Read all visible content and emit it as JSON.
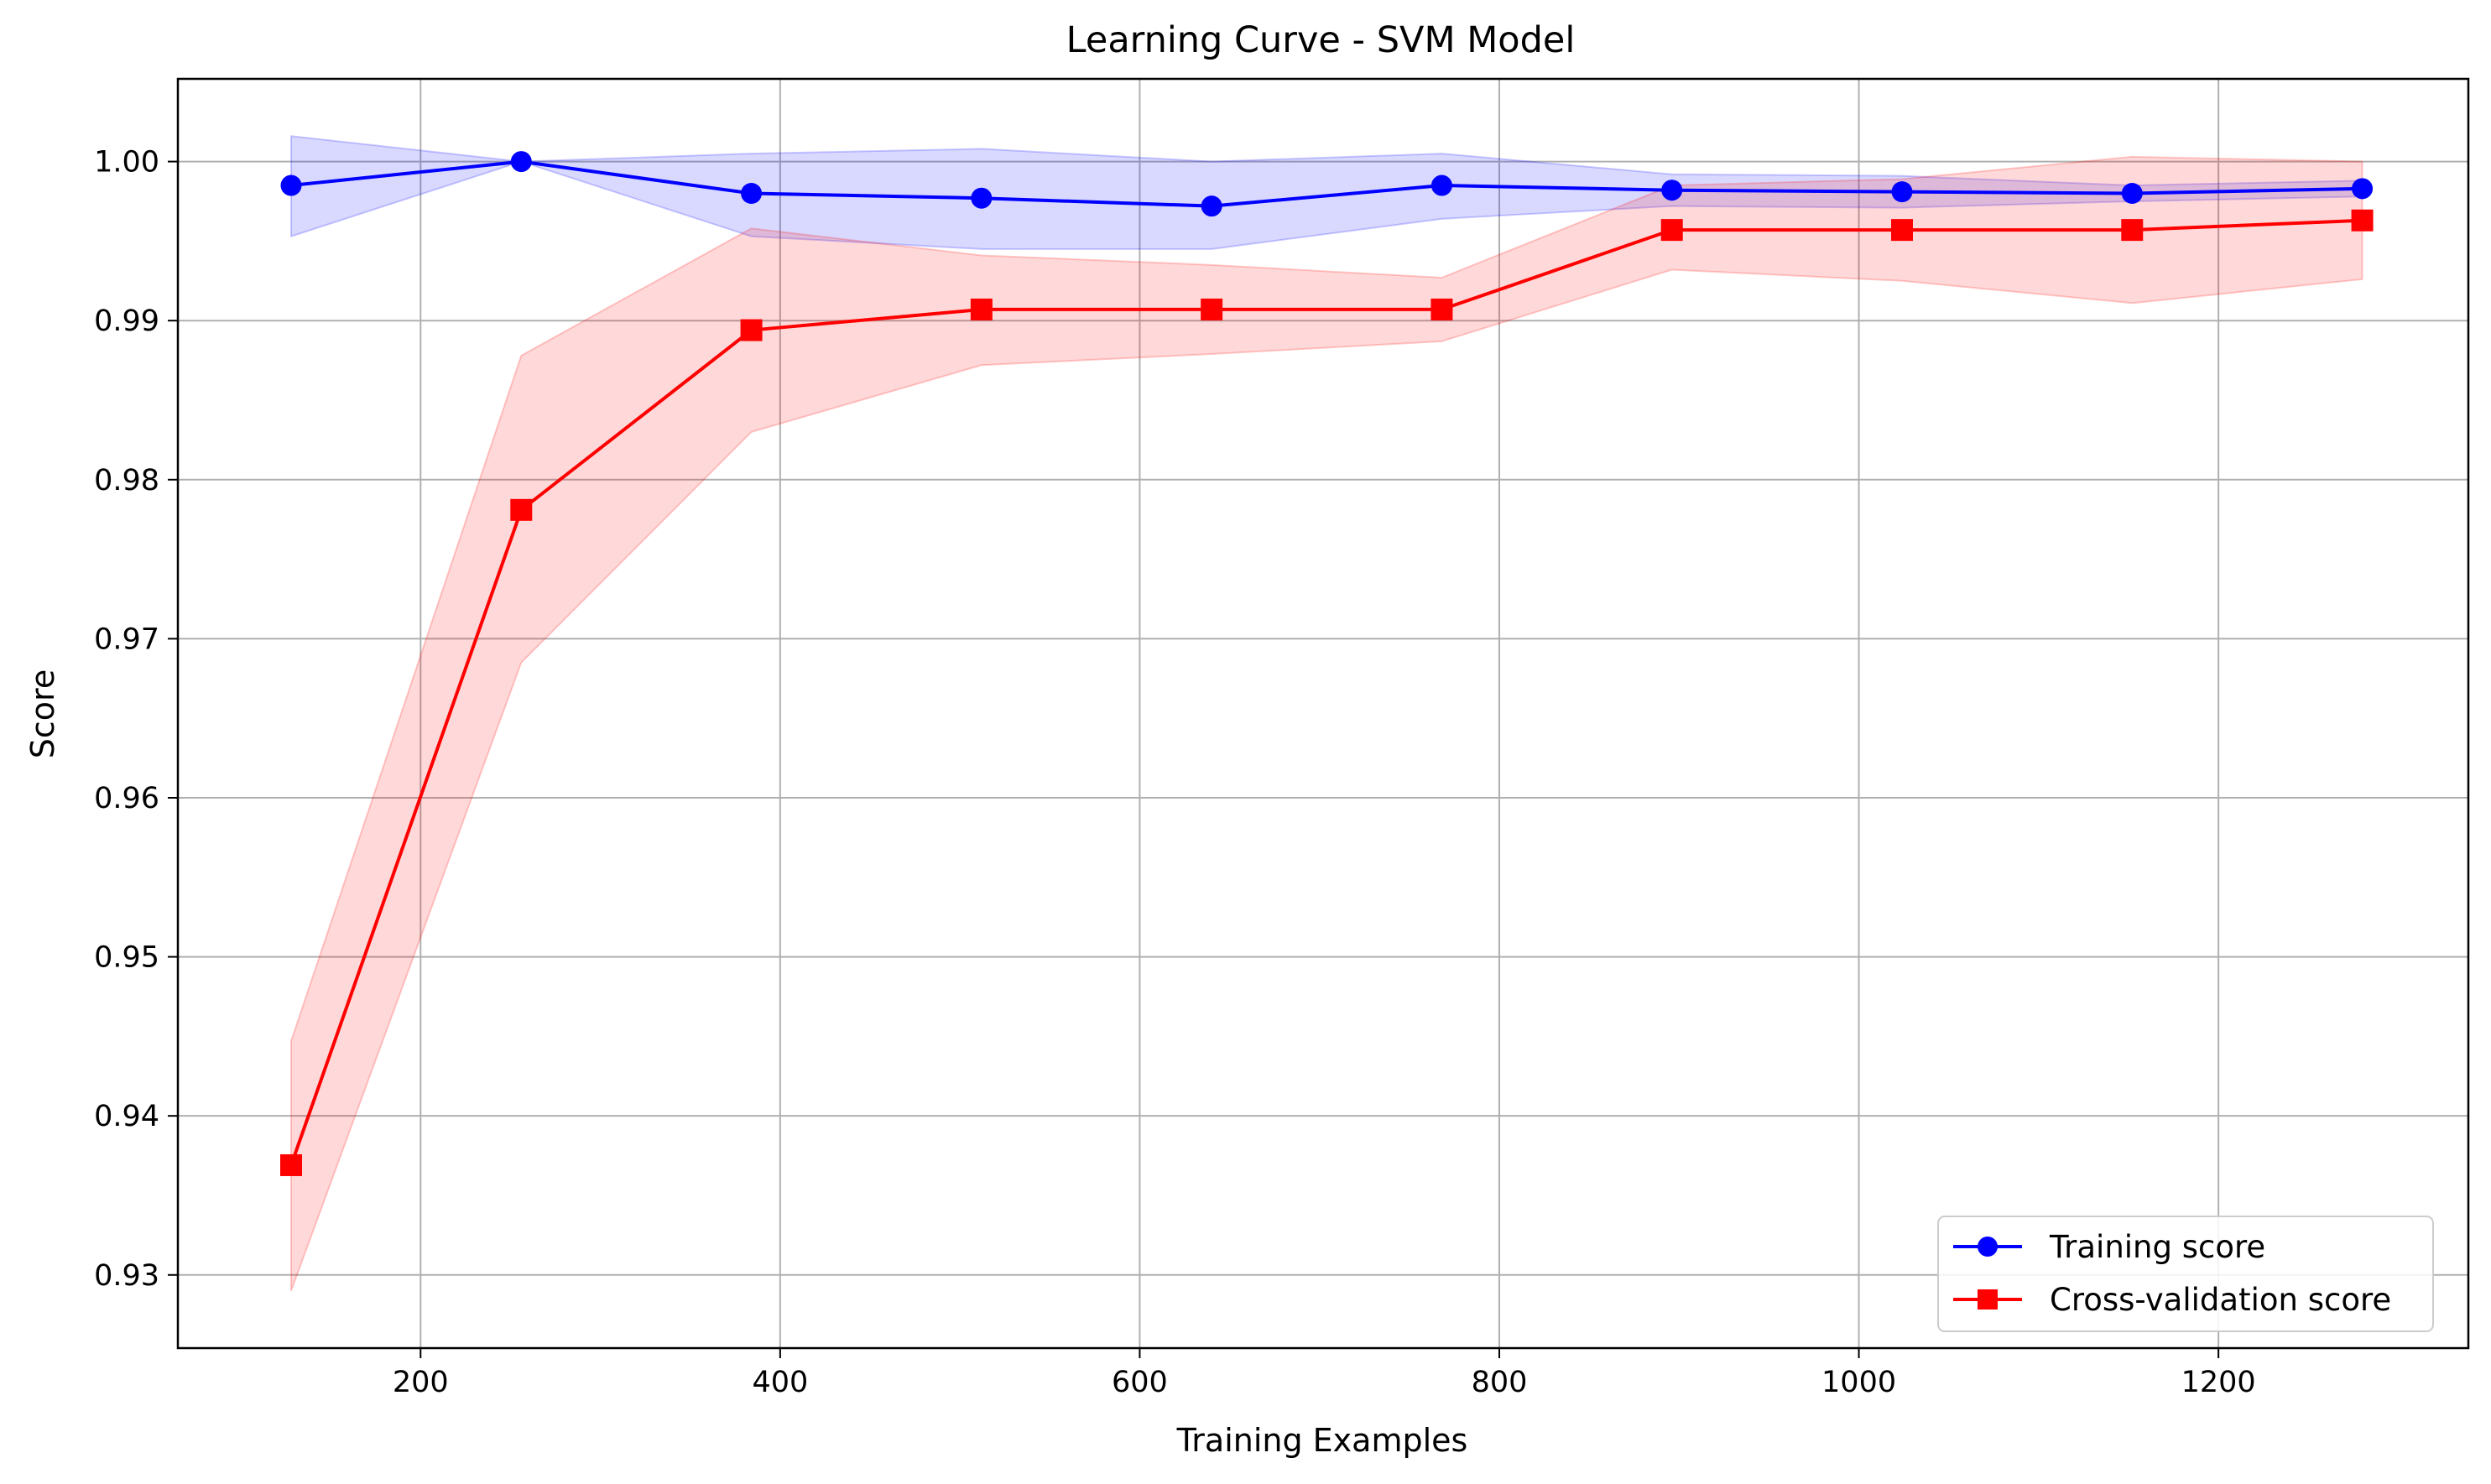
{
  "chart_data": {
    "type": "line",
    "title": "Learning Curve - SVM Model",
    "xlabel": "Training Examples",
    "ylabel": "Score",
    "xlim": [
      65,
      1339
    ],
    "ylim": [
      0.9254,
      1.0052
    ],
    "x_ticks": [
      200,
      400,
      600,
      800,
      1000,
      1200
    ],
    "x_tick_labels": [
      "200",
      "400",
      "600",
      "800",
      "1000",
      "1200"
    ],
    "y_ticks": [
      0.93,
      0.94,
      0.95,
      0.96,
      0.97,
      0.98,
      0.99,
      1.0
    ],
    "y_tick_labels": [
      "0.93",
      "0.94",
      "0.95",
      "0.96",
      "0.97",
      "0.98",
      "0.99",
      "1.00"
    ],
    "grid": true,
    "legend_position": "bottom-right",
    "x": [
      128,
      256,
      384,
      512,
      640,
      768,
      896,
      1024,
      1152,
      1280
    ],
    "series": [
      {
        "name": "Training score",
        "color": "#0000ff",
        "marker": "circle",
        "values": [
          0.9985,
          1.0,
          0.998,
          0.9977,
          0.9972,
          0.9985,
          0.9982,
          0.9981,
          0.998,
          0.9983
        ],
        "band_upper": [
          1.0016,
          1.0,
          1.0005,
          1.0008,
          1.0,
          1.0005,
          0.9992,
          0.9991,
          0.9985,
          0.9988
        ],
        "band_lower": [
          0.9953,
          1.0,
          0.9953,
          0.9945,
          0.9945,
          0.9964,
          0.9972,
          0.9971,
          0.9975,
          0.9978
        ],
        "band_color": "#0000ff"
      },
      {
        "name": "Cross-validation score",
        "color": "#ff0000",
        "marker": "square",
        "values": [
          0.9369,
          0.9781,
          0.9894,
          0.9907,
          0.9907,
          0.9907,
          0.9957,
          0.9957,
          0.9957,
          0.9963
        ],
        "band_upper": [
          0.9447,
          0.9878,
          0.9958,
          0.9941,
          0.9935,
          0.9927,
          0.9985,
          0.9989,
          1.0003,
          1.0
        ],
        "band_lower": [
          0.929,
          0.9685,
          0.983,
          0.9872,
          0.9879,
          0.9887,
          0.9932,
          0.9925,
          0.9911,
          0.9926
        ],
        "band_color": "#ff0000"
      }
    ]
  }
}
